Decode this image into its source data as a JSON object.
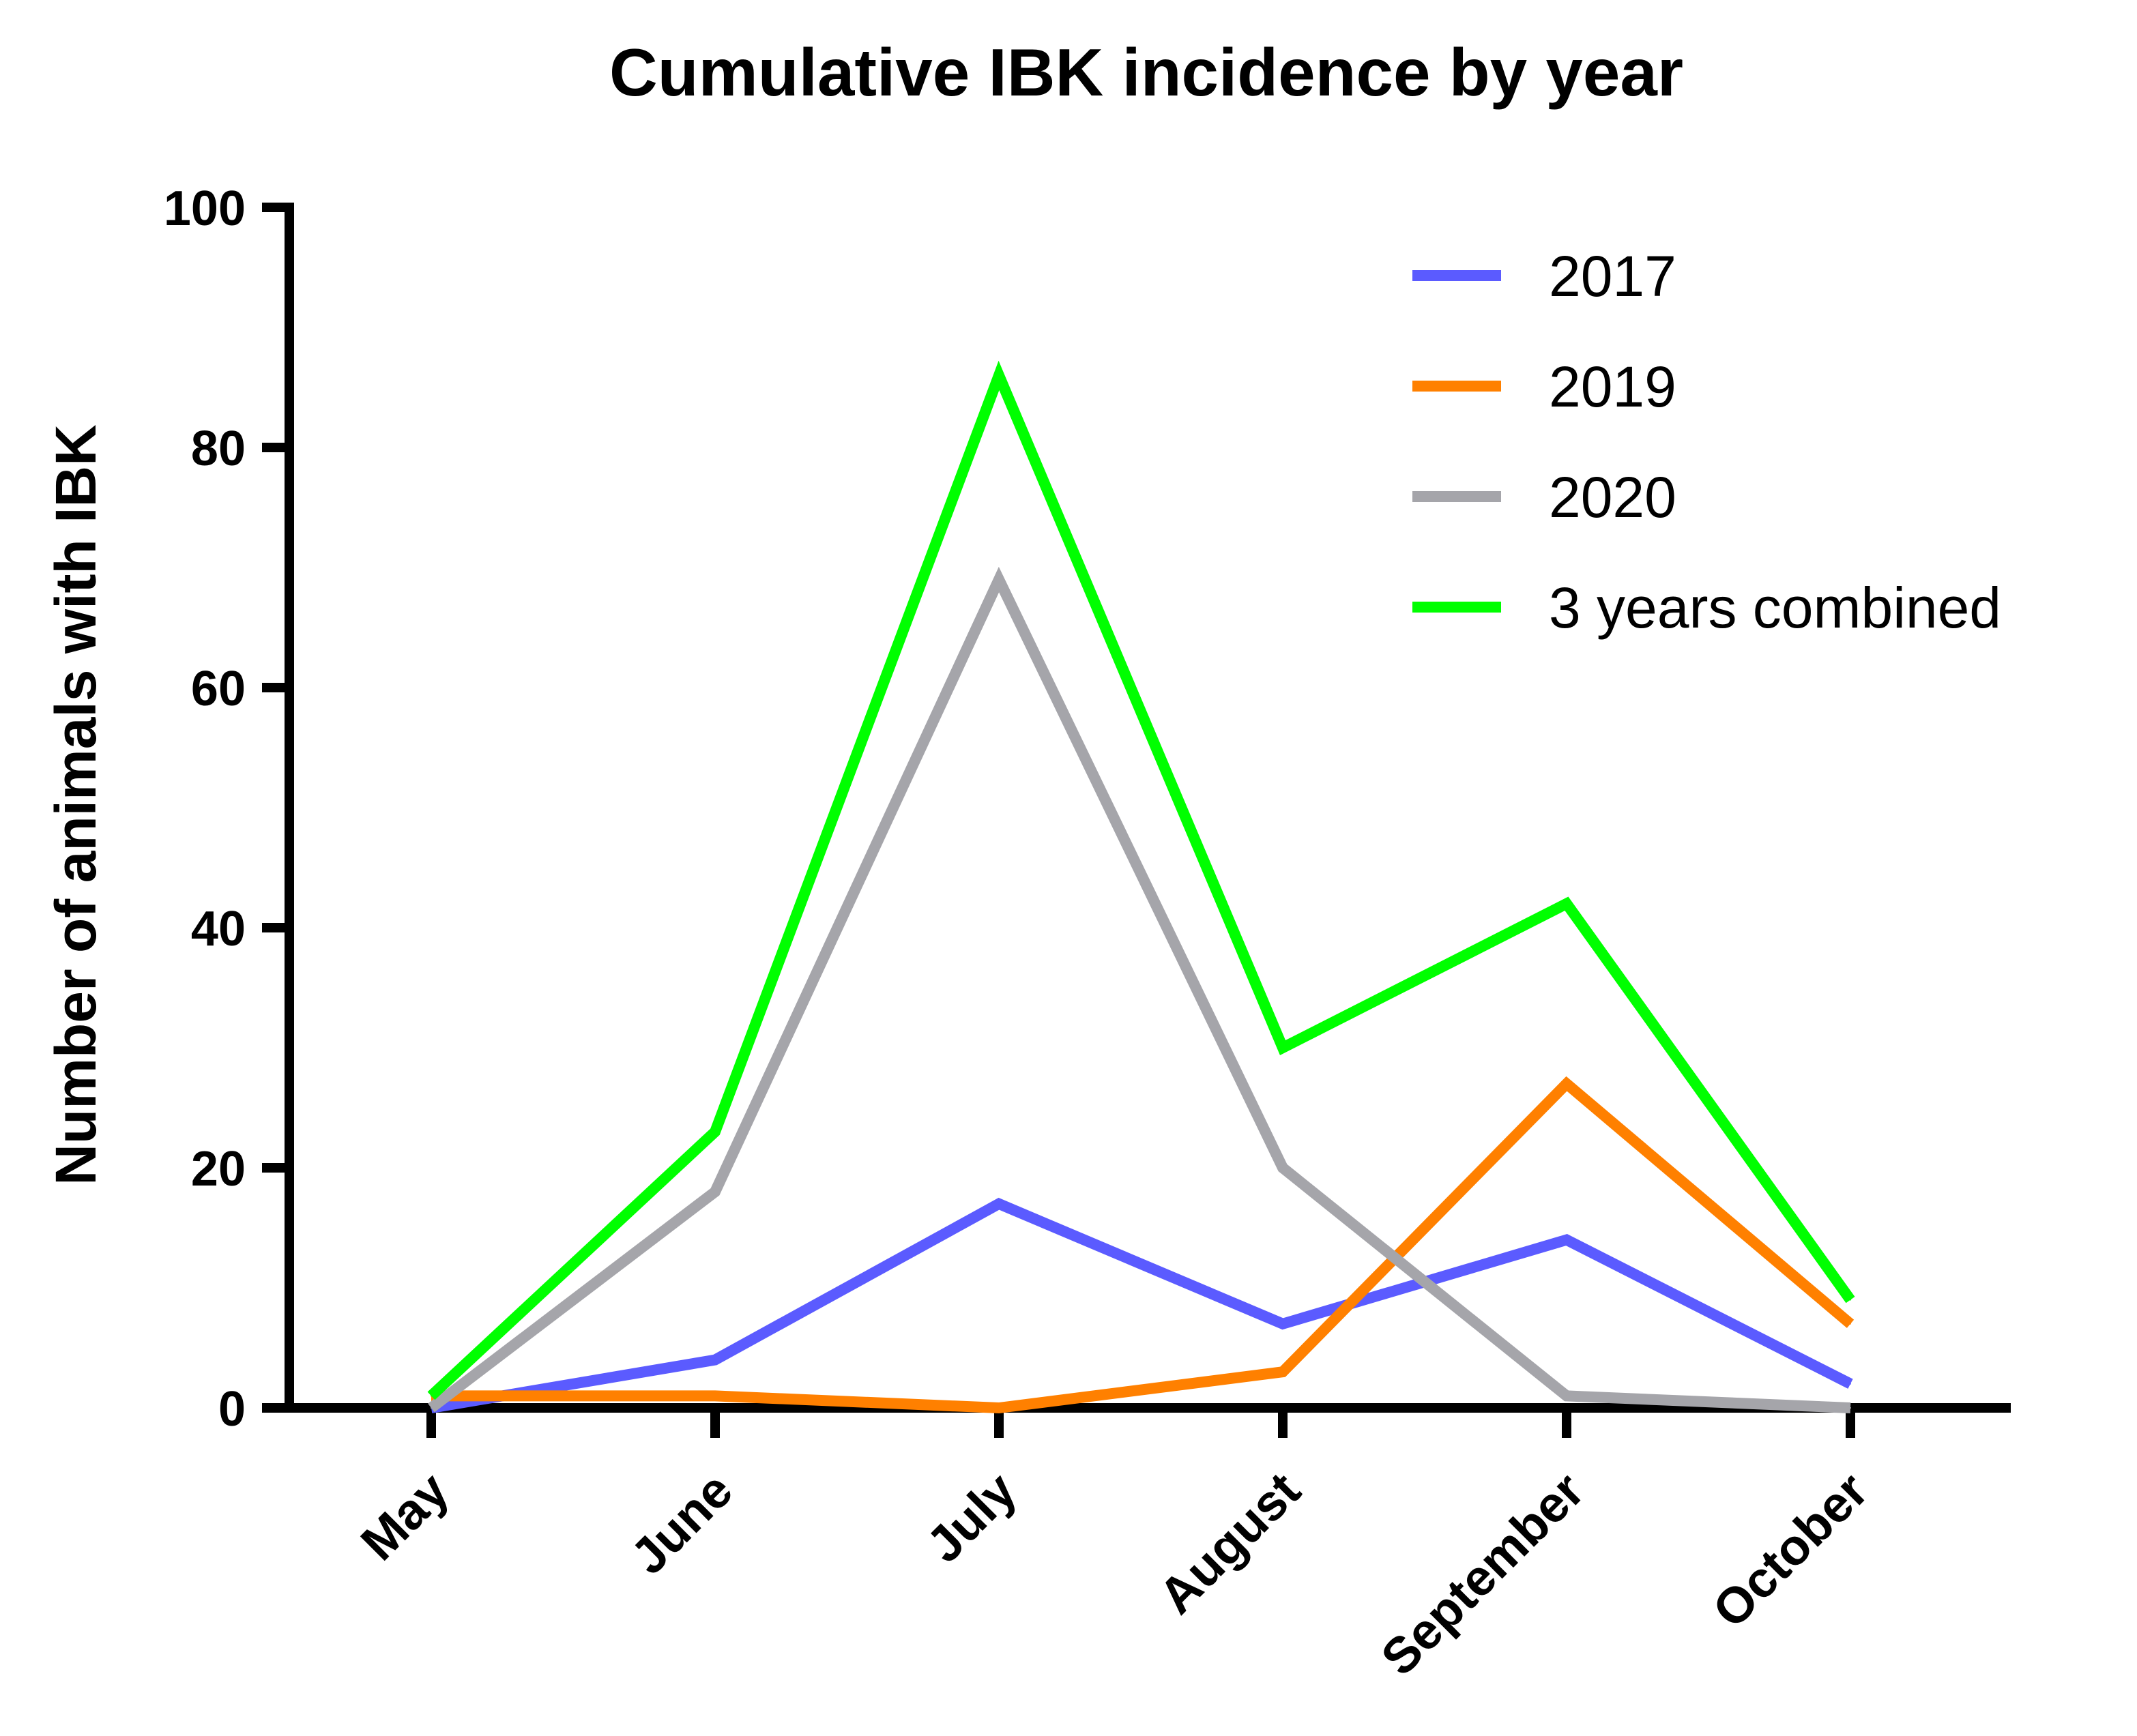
{
  "chart_data": {
    "type": "line",
    "title": "Cumulative IBK incidence by year",
    "xlabel": "",
    "ylabel": "Number of animals with IBK",
    "categories": [
      "May",
      "June",
      "July",
      "August",
      "September",
      "October"
    ],
    "ylim": [
      0,
      100
    ],
    "yticks": [
      0,
      20,
      40,
      60,
      80,
      100
    ],
    "legend_position": "top-right",
    "series": [
      {
        "name": "2017",
        "color": "#5b5bff",
        "values": [
          0,
          4,
          17,
          7,
          14,
          2
        ]
      },
      {
        "name": "2019",
        "color": "#ff8000",
        "values": [
          1,
          1,
          0,
          3,
          27,
          7
        ]
      },
      {
        "name": "2020",
        "color": "#a5a5aa",
        "values": [
          0,
          18,
          69,
          20,
          1,
          0
        ]
      },
      {
        "name": "3 years combined",
        "color": "#00ff00",
        "values": [
          1,
          23,
          86,
          30,
          42,
          9
        ]
      }
    ]
  }
}
